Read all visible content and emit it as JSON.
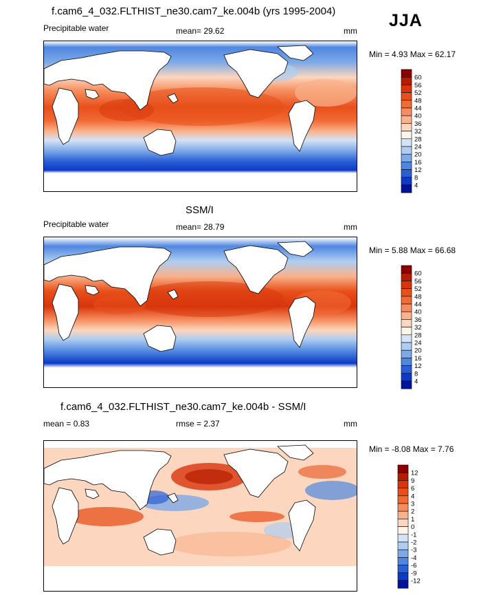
{
  "season": "JJA",
  "panels": [
    {
      "title": "f.cam6_4_032.FLTHIST_ne30.cam7_ke.004b (yrs 1995-2004)",
      "left_label": "Precipitable water",
      "center_label": "mean=  29.62",
      "units": "mm",
      "minmax": "Min =   4.93 Max =  62.17",
      "colorbar": {
        "levels": [
          "60",
          "56",
          "52",
          "48",
          "44",
          "40",
          "36",
          "32",
          "28",
          "24",
          "20",
          "16",
          "12",
          "8",
          "4"
        ],
        "colors": [
          "#8e0000",
          "#b51d00",
          "#d8350c",
          "#e8501a",
          "#f26a34",
          "#f68d5e",
          "#f9b28c",
          "#fcd6be",
          "#fff4ea",
          "#d4e3f7",
          "#aecdf1",
          "#7da9e7",
          "#4f87e0",
          "#2b5fd6",
          "#0d3ac6",
          "#00149b"
        ]
      }
    },
    {
      "title": "SSM/I",
      "left_label": "Precipitable water",
      "center_label": "mean=  28.79",
      "units": "mm",
      "minmax": "Min =   5.88 Max =  66.68",
      "colorbar": {
        "levels": [
          "60",
          "56",
          "52",
          "48",
          "44",
          "40",
          "36",
          "32",
          "28",
          "24",
          "20",
          "16",
          "12",
          "8",
          "4"
        ],
        "colors": [
          "#8e0000",
          "#b51d00",
          "#d8350c",
          "#e8501a",
          "#f26a34",
          "#f68d5e",
          "#f9b28c",
          "#fcd6be",
          "#fff4ea",
          "#d4e3f7",
          "#aecdf1",
          "#7da9e7",
          "#4f87e0",
          "#2b5fd6",
          "#0d3ac6",
          "#00149b"
        ]
      }
    },
    {
      "title": "f.cam6_4_032.FLTHIST_ne30.cam7_ke.004b - SSM/I",
      "left_label": "mean =   0.83",
      "center_label": "rmse =   2.37",
      "units": "mm",
      "minmax": "Min =  -8.08 Max =   7.76",
      "colorbar": {
        "levels": [
          "12",
          "9",
          "6",
          "4",
          "3",
          "2",
          "1",
          "0",
          "-1",
          "-2",
          "-3",
          "-4",
          "-6",
          "-9",
          "-12"
        ],
        "colors": [
          "#8e0000",
          "#b51d00",
          "#d8350c",
          "#e8501a",
          "#f26a34",
          "#f68d5e",
          "#f9b28c",
          "#fcd6be",
          "#fff4ea",
          "#d4e3f7",
          "#aecdf1",
          "#7da9e7",
          "#4f87e0",
          "#2b5fd6",
          "#0d3ac6",
          "#00149b"
        ]
      }
    }
  ]
}
